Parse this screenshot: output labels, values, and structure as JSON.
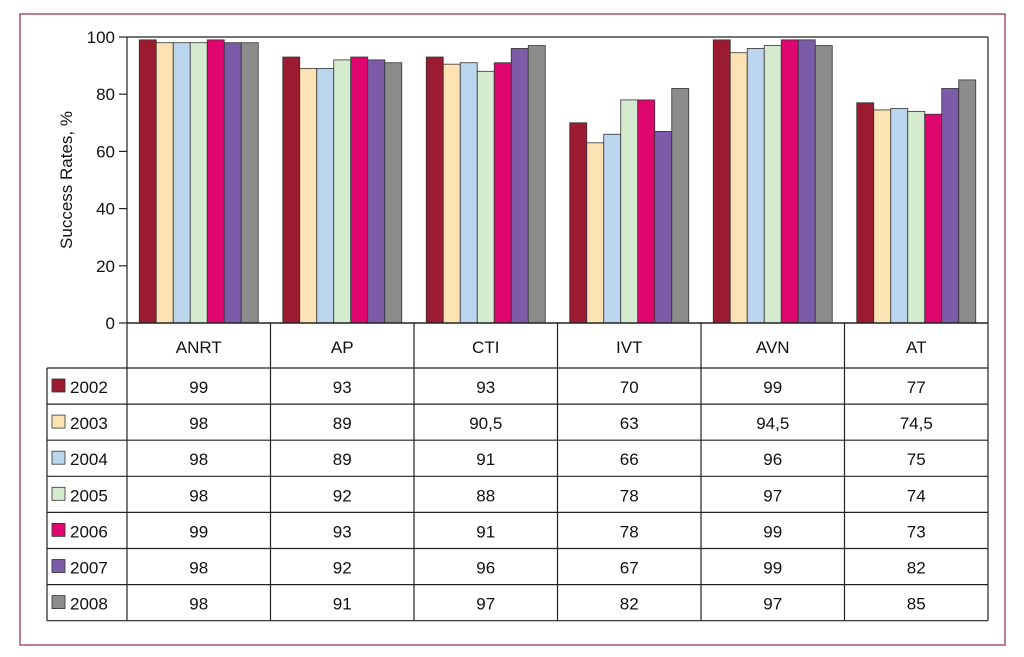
{
  "chart_data": {
    "type": "bar",
    "title": "",
    "xlabel": "",
    "ylabel": "Success Rates, %",
    "ylim": [
      0,
      100
    ],
    "yticks": [
      "0",
      "20",
      "40",
      "60",
      "80",
      "100"
    ],
    "grid": false,
    "legend_placement": "table-left",
    "categories": [
      "ANRT",
      "AP",
      "CTI",
      "IVT",
      "AVN",
      "AT"
    ],
    "series": [
      {
        "name": "2002",
        "color": "#9b1b30",
        "values": [
          99,
          93,
          93,
          70,
          99,
          77
        ],
        "labels": [
          "99",
          "93",
          "93",
          "70",
          "99",
          "77"
        ]
      },
      {
        "name": "2003",
        "color": "#fde2b4",
        "values": [
          98,
          89,
          90.5,
          63,
          94.5,
          74.5
        ],
        "labels": [
          "98",
          "89",
          "90,5",
          "63",
          "94,5",
          "74,5"
        ]
      },
      {
        "name": "2004",
        "color": "#bcd5ee",
        "values": [
          98,
          89,
          91,
          66,
          96,
          75
        ],
        "labels": [
          "98",
          "89",
          "91",
          "66",
          "96",
          "75"
        ]
      },
      {
        "name": "2005",
        "color": "#d5ebd0",
        "values": [
          98,
          92,
          88,
          78,
          97,
          74
        ],
        "labels": [
          "98",
          "92",
          "88",
          "78",
          "97",
          "74"
        ]
      },
      {
        "name": "2006",
        "color": "#e0066f",
        "values": [
          99,
          93,
          91,
          78,
          99,
          73
        ],
        "labels": [
          "99",
          "93",
          "91",
          "78",
          "99",
          "73"
        ]
      },
      {
        "name": "2007",
        "color": "#7c5ca8",
        "values": [
          98,
          92,
          96,
          67,
          99,
          82
        ],
        "labels": [
          "98",
          "92",
          "96",
          "67",
          "99",
          "82"
        ]
      },
      {
        "name": "2008",
        "color": "#8c8c8c",
        "values": [
          98,
          91,
          97,
          82,
          97,
          85
        ],
        "labels": [
          "98",
          "91",
          "97",
          "82",
          "97",
          "85"
        ]
      }
    ]
  },
  "frame_color": "#a4566a"
}
